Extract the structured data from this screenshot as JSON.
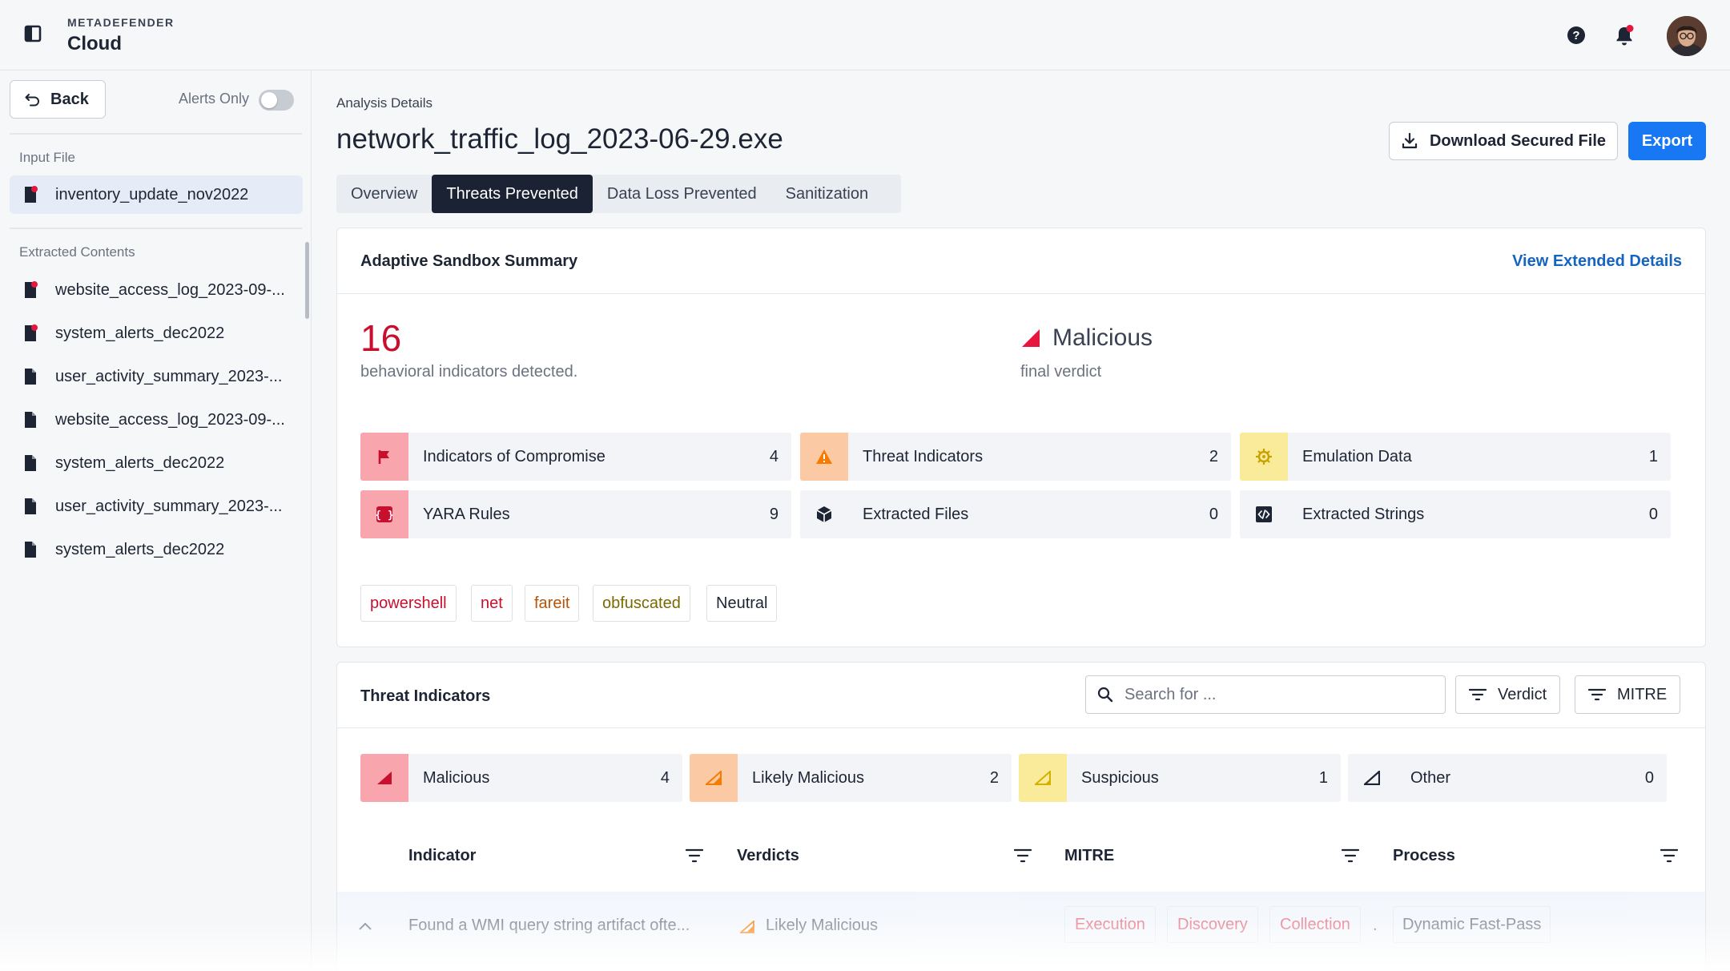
{
  "app": {
    "brand_top": "METADEFENDER",
    "brand_main": "Cloud"
  },
  "sidebar": {
    "back_label": "Back",
    "alerts_only_label": "Alerts Only",
    "alerts_only_on": false,
    "input_file_label": "Input File",
    "input_file": "inventory_update_nov2022",
    "extracted_label": "Extracted Contents",
    "extracted": [
      {
        "name": "website_access_log_2023-09-...",
        "alert": true
      },
      {
        "name": "system_alerts_dec2022",
        "alert": true
      },
      {
        "name": "user_activity_summary_2023-...",
        "alert": false
      },
      {
        "name": "website_access_log_2023-09-...",
        "alert": false
      },
      {
        "name": "system_alerts_dec2022",
        "alert": false
      },
      {
        "name": "user_activity_summary_2023-...",
        "alert": false
      },
      {
        "name": "system_alerts_dec2022",
        "alert": false
      }
    ]
  },
  "header": {
    "breadcrumb": "Analysis Details",
    "title": "network_traffic_log_2023-06-29.exe",
    "download_label": "Download Secured File",
    "export_label": "Export"
  },
  "tabs": [
    "Overview",
    "Threats Prevented",
    "Data Loss Prevented",
    "Sanitization"
  ],
  "active_tab": "Threats Prevented",
  "summary": {
    "title": "Adaptive Sandbox Summary",
    "link": "View Extended Details",
    "count": "16",
    "count_label": "behavioral indicators detected.",
    "verdict": "Malicious",
    "verdict_label": "final verdict",
    "stats": [
      {
        "label": "Indicators of Compromise",
        "count": "4",
        "icon": "flag-icon"
      },
      {
        "label": "Threat Indicators",
        "count": "2",
        "icon": "warning-icon"
      },
      {
        "label": "Emulation Data",
        "count": "1",
        "icon": "gear-chip-icon"
      },
      {
        "label": "YARA Rules",
        "count": "9",
        "icon": "braces-icon"
      },
      {
        "label": "Extracted Files",
        "count": "0",
        "icon": "cube-icon"
      },
      {
        "label": "Extracted Strings",
        "count": "0",
        "icon": "code-icon"
      }
    ],
    "tags": [
      {
        "label": "powershell",
        "color": "#c8102e"
      },
      {
        "label": "net",
        "color": "#c8102e"
      },
      {
        "label": "fareit",
        "color": "#b45309"
      },
      {
        "label": "obfuscated",
        "color": "#7a6a00"
      },
      {
        "label": "Neutral",
        "color": "#1d2433"
      }
    ]
  },
  "threat_indicators": {
    "title": "Threat Indicators",
    "search_placeholder": "Search for ...",
    "filter_verdict": "Verdict",
    "filter_mitre": "MITRE",
    "verdict_counts": [
      {
        "label": "Malicious",
        "count": "4"
      },
      {
        "label": "Likely Malicious",
        "count": "2"
      },
      {
        "label": "Suspicious",
        "count": "1"
      },
      {
        "label": "Other",
        "count": "0"
      }
    ],
    "columns": [
      "Indicator",
      "Verdicts",
      "MITRE",
      "Process"
    ],
    "rows": [
      {
        "indicator": "Found a WMI query string artifact ofte...",
        "verdict": "Likely Malicious",
        "mitre": [
          "Execution",
          "Discovery",
          "Collection"
        ],
        "mitre_more": ".",
        "process": "Dynamic Fast-Pass"
      }
    ]
  },
  "colors": {
    "accent": "#1877f2",
    "malicious": "#c8102e",
    "likely": "#f57c00",
    "suspicious": "#f0c419"
  }
}
